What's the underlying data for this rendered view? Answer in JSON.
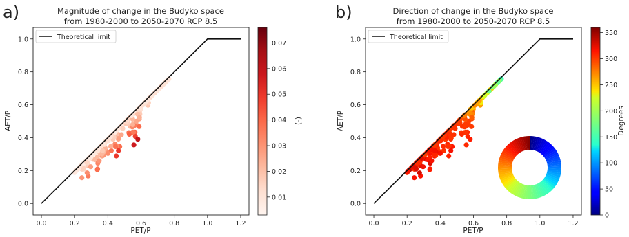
{
  "chart_data": [
    {
      "type": "scatter",
      "panel_label": "a)",
      "title_lines": [
        "Magnitude of change in the Budyko space",
        "from 1980-2000 to 2050-2070 RCP 8.5"
      ],
      "xlabel": "PET/P",
      "ylabel": "AET/P",
      "xlim": [
        -0.05,
        1.25
      ],
      "ylim": [
        -0.07,
        1.07
      ],
      "xticks": [
        "0.0",
        "0.2",
        "0.4",
        "0.6",
        "0.8",
        "1.0",
        "1.2"
      ],
      "yticks": [
        "0.0",
        "0.2",
        "0.4",
        "0.6",
        "0.8",
        "1.0"
      ],
      "legend": {
        "label": "Theoretical limit",
        "location": "upper left"
      },
      "theoretical_limit": {
        "x": [
          0,
          1.0,
          1.2
        ],
        "y": [
          0,
          1.0,
          1.0
        ]
      },
      "colorbar": {
        "label": "(-)",
        "colormap": "Reds",
        "range": [
          0.003,
          0.076
        ],
        "ticks": [
          "0.01",
          "0.02",
          "0.03",
          "0.04",
          "0.05",
          "0.06",
          "0.07"
        ]
      }
    },
    {
      "type": "scatter",
      "panel_label": "b)",
      "title_lines": [
        "Direction of change in the Budyko space",
        "from 1980-2000 to 2050-2070 RCP 8.5"
      ],
      "xlabel": "PET/P",
      "ylabel": "AET/P",
      "xlim": [
        -0.05,
        1.25
      ],
      "ylim": [
        -0.07,
        1.07
      ],
      "xticks": [
        "0.0",
        "0.2",
        "0.4",
        "0.6",
        "0.8",
        "1.0",
        "1.2"
      ],
      "yticks": [
        "0.0",
        "0.2",
        "0.4",
        "0.6",
        "0.8",
        "1.0"
      ],
      "legend": {
        "label": "Theoretical limit",
        "location": "upper left"
      },
      "theoretical_limit": {
        "x": [
          0,
          1.0,
          1.2
        ],
        "y": [
          0,
          1.0,
          1.0
        ]
      },
      "colorbar": {
        "label": "Degrees",
        "colormap": "jet",
        "range": [
          0,
          360
        ],
        "ticks": [
          "0",
          "50",
          "100",
          "150",
          "200",
          "250",
          "300",
          "350"
        ]
      },
      "direction_wheel": true
    }
  ]
}
